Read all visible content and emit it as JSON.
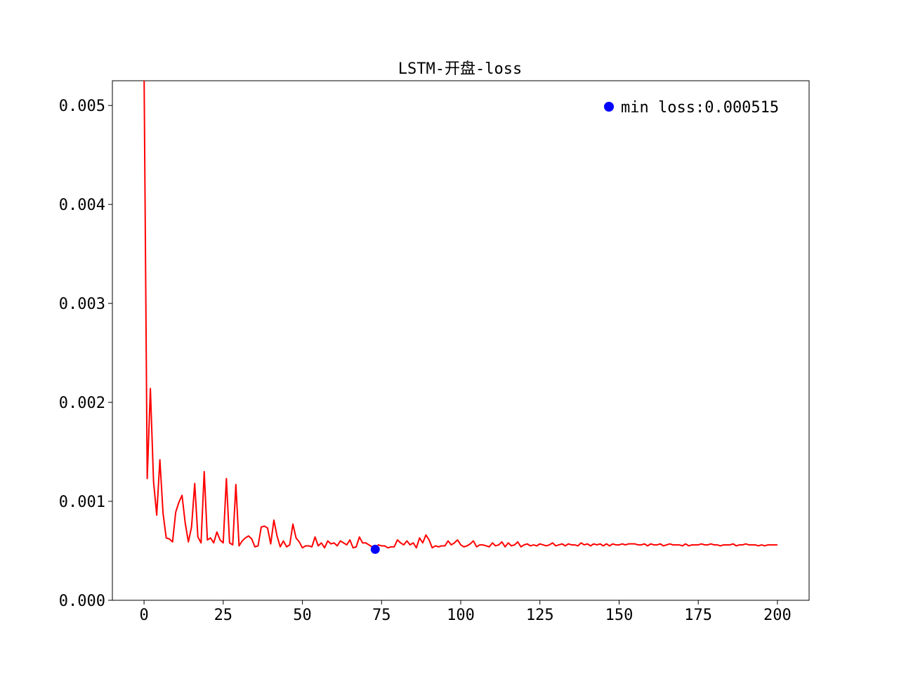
{
  "chart_data": {
    "type": "line",
    "title": "LSTM-开盘-loss",
    "xlabel": "",
    "ylabel": "",
    "xlim": [
      -10,
      210
    ],
    "ylim": [
      0,
      0.00525
    ],
    "grid": false,
    "x_ticks": [
      0,
      25,
      50,
      75,
      100,
      125,
      150,
      175,
      200
    ],
    "x_tick_labels": [
      "0",
      "25",
      "50",
      "75",
      "100",
      "125",
      "150",
      "175",
      "200"
    ],
    "y_ticks": [
      0,
      0.001,
      0.002,
      0.003,
      0.004,
      0.005
    ],
    "y_tick_labels": [
      "0.000",
      "0.001",
      "0.002",
      "0.003",
      "0.004",
      "0.005"
    ],
    "series": [
      {
        "color": "#ff0000",
        "x_start": 0,
        "values": [
          0.00538,
          0.00123,
          0.00214,
          0.0012,
          0.00086,
          0.00142,
          0.00088,
          0.00063,
          0.00062,
          0.00059,
          0.00089,
          0.00099,
          0.00106,
          0.00078,
          0.00059,
          0.00074,
          0.00118,
          0.00064,
          0.00058,
          0.0013,
          0.00061,
          0.00063,
          0.00058,
          0.00069,
          0.00061,
          0.00058,
          0.00123,
          0.00058,
          0.00056,
          0.00117,
          0.00055,
          0.0006,
          0.00063,
          0.00065,
          0.00062,
          0.00054,
          0.00055,
          0.00074,
          0.00075,
          0.00073,
          0.00057,
          0.00081,
          0.00065,
          0.00054,
          0.0006,
          0.00054,
          0.00056,
          0.00077,
          0.00063,
          0.00059,
          0.00053,
          0.00055,
          0.00055,
          0.00054,
          0.00064,
          0.00055,
          0.00058,
          0.00053,
          0.0006,
          0.00057,
          0.00058,
          0.00055,
          0.0006,
          0.00058,
          0.00056,
          0.00061,
          0.00053,
          0.00054,
          0.00064,
          0.00058,
          0.00058,
          0.00056,
          0.00054,
          0.000515,
          0.00056,
          0.00055,
          0.00055,
          0.00053,
          0.00054,
          0.00054,
          0.00061,
          0.00058,
          0.00056,
          0.0006,
          0.00056,
          0.00058,
          0.00053,
          0.00063,
          0.00058,
          0.00066,
          0.00061,
          0.00053,
          0.00055,
          0.00054,
          0.00055,
          0.00055,
          0.0006,
          0.00056,
          0.00058,
          0.00061,
          0.00056,
          0.00054,
          0.00055,
          0.00057,
          0.0006,
          0.00054,
          0.00056,
          0.00056,
          0.00055,
          0.00054,
          0.00058,
          0.00055,
          0.00056,
          0.00059,
          0.00054,
          0.00058,
          0.00055,
          0.00056,
          0.00059,
          0.00054,
          0.00056,
          0.00057,
          0.00055,
          0.00056,
          0.00055,
          0.00057,
          0.00056,
          0.00055,
          0.00056,
          0.00058,
          0.00055,
          0.00056,
          0.00057,
          0.00055,
          0.00057,
          0.00056,
          0.00056,
          0.00055,
          0.00058,
          0.00056,
          0.00057,
          0.00055,
          0.00057,
          0.00056,
          0.00057,
          0.00055,
          0.00057,
          0.00055,
          0.00057,
          0.00056,
          0.00056,
          0.00057,
          0.00056,
          0.00057,
          0.00057,
          0.00057,
          0.00056,
          0.00056,
          0.00057,
          0.00055,
          0.00057,
          0.00056,
          0.00056,
          0.00057,
          0.00055,
          0.00056,
          0.00057,
          0.00056,
          0.00056,
          0.00056,
          0.00055,
          0.00057,
          0.00055,
          0.00056,
          0.00056,
          0.00056,
          0.00057,
          0.00056,
          0.00056,
          0.00057,
          0.00056,
          0.00056,
          0.00055,
          0.00056,
          0.00056,
          0.00056,
          0.00057,
          0.00055,
          0.00056,
          0.00056,
          0.00057,
          0.00056,
          0.00056,
          0.00056,
          0.00055,
          0.00056,
          0.00055,
          0.00056,
          0.00056,
          0.00056,
          0.00056
        ]
      },
      {
        "type": "scatter",
        "name": "min loss:0.000515",
        "color": "#0000ff",
        "x": [
          73
        ],
        "y": [
          0.000515
        ]
      }
    ],
    "legend": {
      "placement": "top-right",
      "label": "min loss:0.000515"
    }
  }
}
